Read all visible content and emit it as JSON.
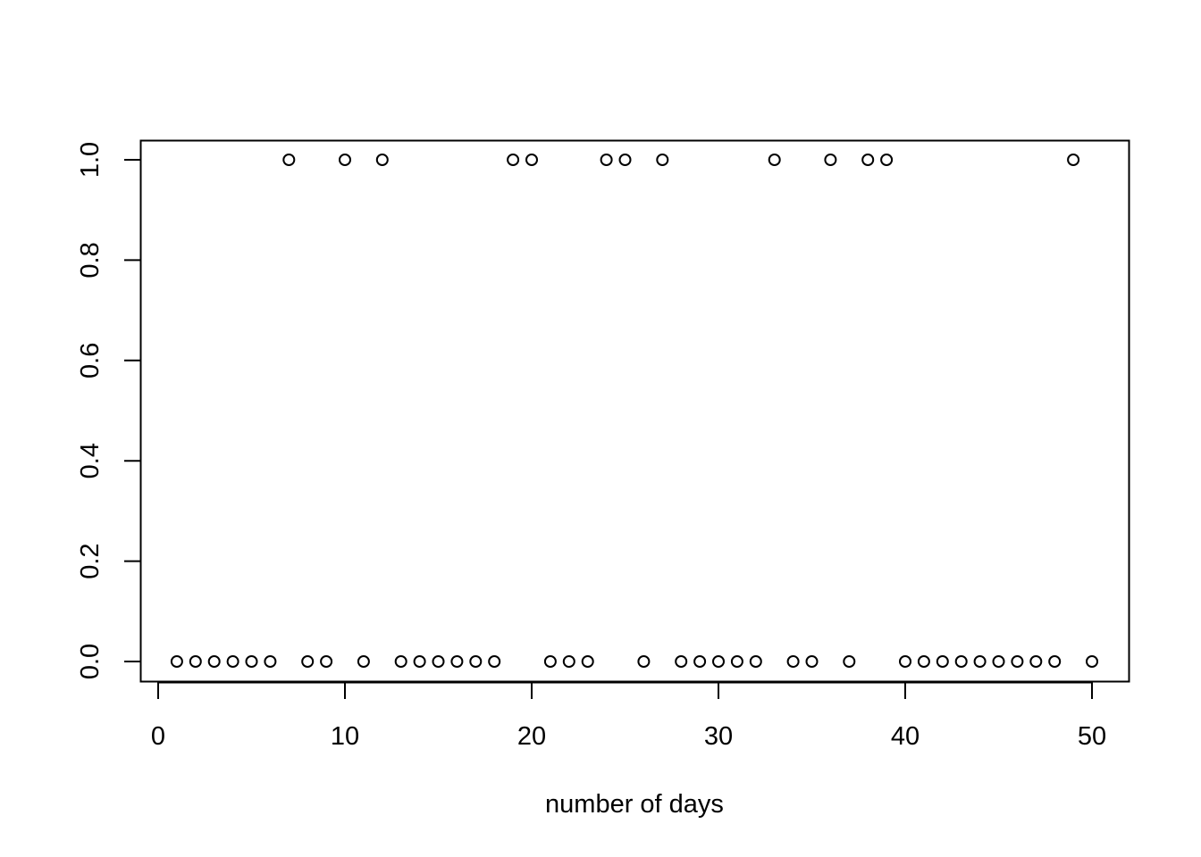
{
  "chart_data": {
    "type": "scatter",
    "title": "",
    "xlabel": "number of days",
    "ylabel": "",
    "xlim": [
      0,
      50
    ],
    "ylim": [
      0,
      1
    ],
    "x_ticks": [
      0,
      10,
      20,
      30,
      40,
      50
    ],
    "y_ticks": [
      0.0,
      0.2,
      0.4,
      0.6,
      0.8,
      1.0
    ],
    "x_tick_labels": [
      "0",
      "10",
      "20",
      "30",
      "40",
      "50"
    ],
    "y_tick_labels": [
      "0.0",
      "0.2",
      "0.4",
      "0.6",
      "0.8",
      "1.0"
    ],
    "grid": false,
    "marker": "open-circle",
    "marker_color": "#000000",
    "series": [
      {
        "x": [
          1,
          2,
          3,
          4,
          5,
          6,
          7,
          8,
          9,
          10,
          11,
          12,
          13,
          14,
          15,
          16,
          17,
          18,
          19,
          20,
          21,
          22,
          23,
          24,
          25,
          26,
          27,
          28,
          29,
          30,
          31,
          32,
          33,
          34,
          35,
          36,
          37,
          38,
          39,
          40,
          41,
          42,
          43,
          44,
          45,
          46,
          47,
          48,
          49,
          50
        ],
        "y": [
          0,
          0,
          0,
          0,
          0,
          0,
          1,
          0,
          0,
          1,
          0,
          1,
          0,
          0,
          0,
          0,
          0,
          0,
          1,
          1,
          0,
          0,
          0,
          1,
          1,
          0,
          1,
          0,
          0,
          0,
          0,
          0,
          1,
          0,
          0,
          1,
          0,
          1,
          1,
          0,
          0,
          0,
          0,
          0,
          0,
          0,
          0,
          0,
          1,
          0
        ]
      }
    ]
  }
}
